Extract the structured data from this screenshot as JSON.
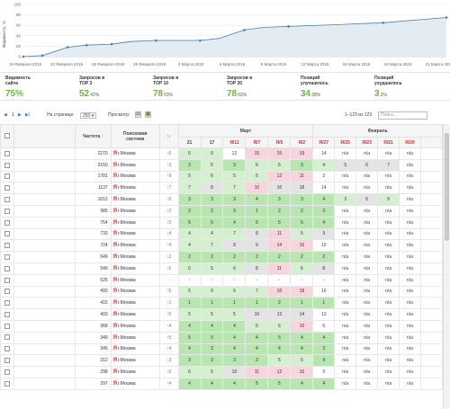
{
  "chart_data": {
    "type": "line",
    "ylabel": "Видимость, %",
    "yticks": [
      "100",
      "80",
      "60",
      "40",
      "20",
      "0"
    ],
    "ylim": [
      0,
      100
    ],
    "xticks": [
      "19 Февраля 2019",
      "22 Февраля 2019",
      "25 Февраля 2019",
      "28 Февраля 2019",
      "3 Марта 2019",
      "6 Марта 2019",
      "9 Марта 2019",
      "12 Марта 2019",
      "15 Марта 2019",
      "18 Марта 2019",
      "21 Марта 2019"
    ],
    "x": [
      0,
      3,
      7,
      10,
      14,
      17,
      21,
      24,
      26,
      28,
      31,
      35,
      38,
      42,
      49,
      57,
      62,
      67
    ],
    "values": [
      0,
      2,
      18,
      22,
      24,
      29,
      31,
      31,
      31,
      31,
      35,
      51,
      56,
      58,
      61,
      65,
      70,
      75
    ],
    "markers": [
      0,
      3,
      7,
      10,
      14,
      21,
      28,
      35,
      42,
      57,
      67
    ],
    "grid": true,
    "area": true
  },
  "stats": [
    {
      "label": "Видимость\nсайта",
      "value": "75%",
      "pct": ""
    },
    {
      "label": "Запросов в\nTOP 3",
      "value": "52",
      "pct": "42%"
    },
    {
      "label": "Запросов в\nTOP 10",
      "value": "78",
      "pct": "63%"
    },
    {
      "label": "Запросов в\nTOP 30",
      "value": "78",
      "pct": "63%"
    },
    {
      "label": "Позиций\nулучшилось",
      "value": "34",
      "pct": "28%"
    },
    {
      "label": "Позиций\nухудшилось",
      "value": "3",
      "pct": "2%"
    }
  ],
  "toolbar": {
    "prev": "◀",
    "page": "1",
    "next": "▶",
    "last": "▶|",
    "per_page_label": "На странице:",
    "per_page": "250 ▾",
    "view_label": "Просмотр:",
    "range": "1–123 из 123",
    "search_placeholder": "Поиск..."
  },
  "table": {
    "h_freq": "Частота",
    "h_se": "Поисковая\nсистема",
    "h_delta": "↑↓",
    "march": "Март",
    "feb": "Февраль",
    "dates": [
      "21",
      "17",
      "Я/11",
      "Я/7",
      "Я/5",
      "Я/2",
      "Я/27",
      "Я/25",
      "Я/23",
      "Я/21",
      "Я/20"
    ],
    "region": "г.Москва",
    "rows": [
      {
        "freq": "2270",
        "d": "↑6",
        "p": [
          "6",
          "6",
          "12",
          "15",
          "15",
          "19",
          "14",
          "n/a",
          "n/a",
          "n/a",
          "n/a"
        ],
        "c": [
          "c2",
          "c2",
          "cn",
          "cp",
          "cp",
          "cp",
          "cn",
          "cn",
          "cn",
          "cn",
          "cn"
        ]
      },
      {
        "freq": "2150",
        "d": "↑3",
        "p": [
          "3",
          "5",
          "3",
          "6",
          "6",
          "3",
          "4",
          "5",
          "6",
          "7",
          "n/a"
        ],
        "c": [
          "c1",
          "c2",
          "c1",
          "c2",
          "c2",
          "c1",
          "c2",
          "cg",
          "cg",
          "cg",
          "cn"
        ]
      },
      {
        "freq": "1781",
        "d": "↑9",
        "p": [
          "5",
          "6",
          "5",
          "5",
          "12",
          "11",
          "3",
          "n/a",
          "n/a",
          "n/a",
          "n/a"
        ],
        "c": [
          "c2",
          "c2",
          "c2",
          "c2",
          "cp",
          "cp",
          "cn",
          "cn",
          "cn",
          "cn",
          "cn"
        ]
      },
      {
        "freq": "1137",
        "d": "↑7",
        "p": [
          "7",
          "8",
          "7",
          "10",
          "16",
          "18",
          "14",
          "n/a",
          "n/a",
          "n/a",
          "n/a"
        ],
        "c": [
          "c2",
          "cg",
          "c2",
          "cp",
          "cg",
          "cg",
          "cn",
          "cn",
          "cn",
          "cn",
          "cn"
        ]
      },
      {
        "freq": "1012",
        "d": "↑6",
        "p": [
          "3",
          "3",
          "3",
          "4",
          "3",
          "3",
          "4",
          "3",
          "6",
          "9",
          "n/a"
        ],
        "c": [
          "c1",
          "c1",
          "c1",
          "c1",
          "c1",
          "c1",
          "c1",
          "c2",
          "cg",
          "c2",
          "cn"
        ]
      },
      {
        "freq": "985",
        "d": "↑2",
        "p": [
          "2",
          "2",
          "3",
          "1",
          "2",
          "2",
          "3",
          "n/a",
          "n/a",
          "n/a",
          "n/a"
        ],
        "c": [
          "c1",
          "c1",
          "c1",
          "c1",
          "c1",
          "c1",
          "c1",
          "cn",
          "cn",
          "cn",
          "cn"
        ]
      },
      {
        "freq": "754",
        "d": "↑5",
        "p": [
          "5",
          "5",
          "4",
          "5",
          "5",
          "5",
          "4",
          "n/a",
          "n/a",
          "n/a",
          "n/a"
        ],
        "c": [
          "c1",
          "c1",
          "c1",
          "c1",
          "c1",
          "c1",
          "c1",
          "cn",
          "cn",
          "cn",
          "cn"
        ]
      },
      {
        "freq": "733",
        "d": "↑4",
        "p": [
          "4",
          "4",
          "7",
          "8",
          "11",
          "5",
          "9",
          "n/a",
          "n/a",
          "n/a",
          "n/a"
        ],
        "c": [
          "c2",
          "c2",
          "c2",
          "cg",
          "cp",
          "c2",
          "cg",
          "cn",
          "cn",
          "cn",
          "cn"
        ]
      },
      {
        "freq": "724",
        "d": "↑4",
        "p": [
          "4",
          "7",
          "8",
          "9",
          "14",
          "16",
          "10",
          "n/a",
          "n/a",
          "n/a",
          "n/a"
        ],
        "c": [
          "c2",
          "c2",
          "cg",
          "cg",
          "cp",
          "cp",
          "cn",
          "cn",
          "cn",
          "cn",
          "cn"
        ]
      },
      {
        "freq": "649",
        "d": "↑2",
        "p": [
          "2",
          "2",
          "2",
          "2",
          "2",
          "2",
          "2",
          "n/a",
          "n/a",
          "n/a",
          "n/a"
        ],
        "c": [
          "c1",
          "c1",
          "c1",
          "c1",
          "c1",
          "c1",
          "c1",
          "cn",
          "cn",
          "cn",
          "cn"
        ]
      },
      {
        "freq": "549",
        "d": "↑6",
        "p": [
          "6",
          "5",
          "6",
          "8",
          "11",
          "6",
          "8",
          "n/a",
          "n/a",
          "n/a",
          "n/a"
        ],
        "c": [
          "c2",
          "c2",
          "c2",
          "cg",
          "cp",
          "c2",
          "cg",
          "cn",
          "cn",
          "cn",
          "cn"
        ]
      },
      {
        "freq": "525",
        "d": "-",
        "p": [
          "-",
          "-",
          "-",
          "-",
          "-",
          "-",
          "-",
          "n/a",
          "n/a",
          "n/a",
          "n/a"
        ],
        "c": [
          "cn",
          "cn",
          "cn",
          "cn",
          "cn",
          "cn",
          "cn",
          "cn",
          "cn",
          "cn",
          "cn"
        ]
      },
      {
        "freq": "493",
        "d": "↑5",
        "p": [
          "5",
          "6",
          "6",
          "7",
          "16",
          "18",
          "16",
          "n/a",
          "n/a",
          "n/a",
          "n/a"
        ],
        "c": [
          "c2",
          "c2",
          "c2",
          "c2",
          "cp",
          "cp",
          "cn",
          "cn",
          "cn",
          "cn",
          "cn"
        ]
      },
      {
        "freq": "415",
        "d": "↑1",
        "p": [
          "1",
          "1",
          "1",
          "1",
          "2",
          "1",
          "1",
          "n/a",
          "n/a",
          "n/a",
          "n/a"
        ],
        "c": [
          "c1",
          "c1",
          "c1",
          "c1",
          "c1",
          "c1",
          "c1",
          "cn",
          "cn",
          "cn",
          "cn"
        ]
      },
      {
        "freq": "403",
        "d": "↑5",
        "p": [
          "5",
          "5",
          "5",
          "10",
          "13",
          "14",
          "13",
          "n/a",
          "n/a",
          "n/a",
          "n/a"
        ],
        "c": [
          "c2",
          "c2",
          "c2",
          "cg",
          "cg",
          "cg",
          "cn",
          "cn",
          "cn",
          "cn",
          "cn"
        ]
      },
      {
        "freq": "368",
        "d": "↑4",
        "p": [
          "4",
          "4",
          "4",
          "6",
          "6",
          "10",
          "6",
          "n/a",
          "n/a",
          "n/a",
          "n/a"
        ],
        "c": [
          "c1",
          "c1",
          "c1",
          "c2",
          "c2",
          "cp",
          "cn",
          "cn",
          "cn",
          "cn",
          "cn"
        ]
      },
      {
        "freq": "349",
        "d": "↑5",
        "p": [
          "5",
          "5",
          "4",
          "4",
          "5",
          "4",
          "4",
          "n/a",
          "n/a",
          "n/a",
          "n/a"
        ],
        "c": [
          "c1",
          "c1",
          "c1",
          "c1",
          "c1",
          "c1",
          "c1",
          "cn",
          "cn",
          "cn",
          "cn"
        ]
      },
      {
        "freq": "345",
        "d": "↑4",
        "p": [
          "4",
          "3",
          "4",
          "4",
          "4",
          "4",
          "3",
          "n/a",
          "n/a",
          "n/a",
          "n/a"
        ],
        "c": [
          "c1",
          "c1",
          "c1",
          "c1",
          "c1",
          "c1",
          "c1",
          "cn",
          "cn",
          "cn",
          "cn"
        ]
      },
      {
        "freq": "312",
        "d": "↑3",
        "p": [
          "3",
          "3",
          "3",
          "3",
          "5",
          "5",
          "4",
          "n/a",
          "n/a",
          "n/a",
          "n/a"
        ],
        "c": [
          "c1",
          "c1",
          "c1",
          "c1",
          "c2",
          "c2",
          "c1",
          "cn",
          "cn",
          "cn",
          "cn"
        ]
      },
      {
        "freq": "298",
        "d": "↑6",
        "p": [
          "6",
          "5",
          "10",
          "11",
          "12",
          "16",
          "9",
          "n/a",
          "n/a",
          "n/a",
          "n/a"
        ],
        "c": [
          "c2",
          "c2",
          "cg",
          "cp",
          "cp",
          "cp",
          "cn",
          "cn",
          "cn",
          "cn",
          "cn"
        ]
      },
      {
        "freq": "297",
        "d": "↑4",
        "p": [
          "4",
          "4",
          "4",
          "5",
          "5",
          "4",
          "4",
          "n/a",
          "n/a",
          "n/a",
          "n/a"
        ],
        "c": [
          "c1",
          "c1",
          "c1",
          "c1",
          "c1",
          "c1",
          "c1",
          "cn",
          "cn",
          "cn",
          "cn"
        ]
      }
    ]
  },
  "colors": {
    "line": "#4a7fa7",
    "area": "#e3ecf3",
    "good": "#6db33f"
  }
}
